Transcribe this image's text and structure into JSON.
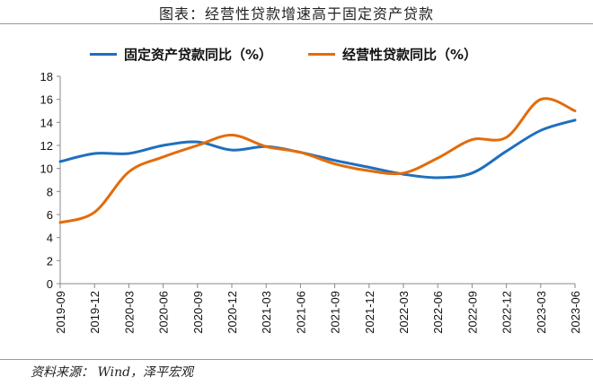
{
  "chart_data": {
    "type": "line",
    "title": "图表：经营性贷款增速高于固定资产贷款",
    "categories": [
      "2019-09",
      "2019-12",
      "2020-03",
      "2020-06",
      "2020-09",
      "2020-12",
      "2021-03",
      "2021-06",
      "2021-09",
      "2021-12",
      "2022-03",
      "2022-06",
      "2022-09",
      "2022-12",
      "2023-03",
      "2023-06"
    ],
    "series": [
      {
        "name": "固定资产贷款同比（%）",
        "color": "#1f6fbf",
        "values": [
          10.6,
          11.3,
          11.3,
          12.0,
          12.3,
          11.6,
          11.9,
          11.4,
          10.7,
          10.1,
          9.5,
          9.2,
          9.6,
          11.5,
          13.3,
          14.2
        ]
      },
      {
        "name": "经营性贷款同比（%）",
        "color": "#e36c0a",
        "values": [
          5.3,
          6.2,
          9.7,
          11.0,
          12.0,
          12.9,
          11.9,
          11.4,
          10.4,
          9.8,
          9.6,
          10.9,
          12.5,
          12.7,
          16.0,
          15.0
        ]
      }
    ],
    "ylim": [
      0,
      18
    ],
    "yticks": [
      "0",
      "2",
      "4",
      "6",
      "8",
      "10",
      "12",
      "14",
      "16",
      "18"
    ],
    "grid": false,
    "legend_position": "top",
    "smooth": true
  },
  "source": "资料来源： Wind，泽平宏观"
}
